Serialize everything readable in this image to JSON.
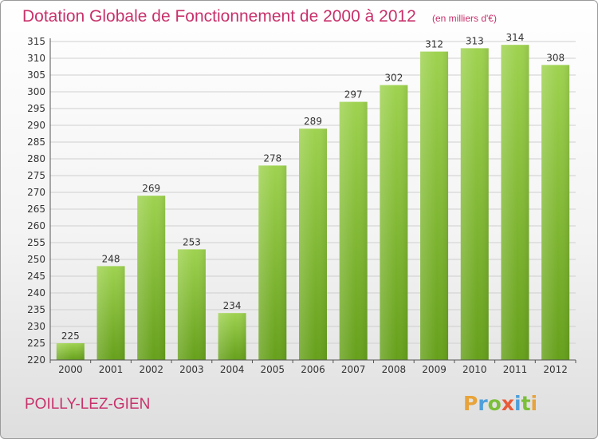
{
  "title": "Dotation Globale de Fonctionnement de 2000 à 2012",
  "subtitle": "(en milliers d'€)",
  "city": "POILLY-LEZ-GIEN",
  "logo": "Proxiti",
  "colors": {
    "title": "#c8316b",
    "bar_light": "#9ed24f",
    "bar_dark": "#66a01b",
    "grid": "#cfcfcf"
  },
  "chart_data": {
    "type": "bar",
    "title": "Dotation Globale de Fonctionnement de 2000 à 2012",
    "subtitle": "(en milliers d'€)",
    "xlabel": "",
    "ylabel": "",
    "categories": [
      "2000",
      "2001",
      "2002",
      "2003",
      "2004",
      "2005",
      "2006",
      "2007",
      "2008",
      "2009",
      "2010",
      "2011",
      "2012"
    ],
    "values": [
      225,
      248,
      269,
      253,
      234,
      278,
      289,
      297,
      302,
      312,
      313,
      314,
      308
    ],
    "ylim": [
      220,
      315
    ],
    "yticks": [
      220,
      225,
      230,
      235,
      240,
      245,
      250,
      255,
      260,
      265,
      270,
      275,
      280,
      285,
      290,
      295,
      300,
      305,
      310,
      315
    ],
    "grid": true,
    "legend": "none"
  }
}
